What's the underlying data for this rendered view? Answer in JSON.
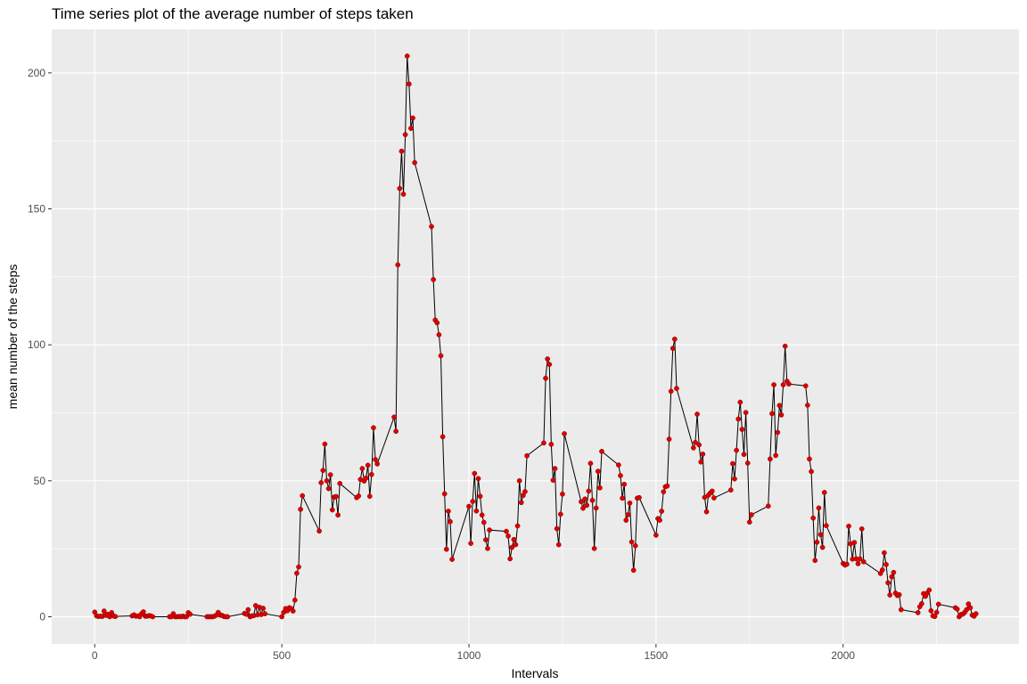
{
  "chart_data": {
    "type": "line",
    "title": "Time series plot of the average number of steps taken",
    "xlabel": "Intervals",
    "ylabel": "mean number of the steps",
    "xlim": [
      -115,
      2470
    ],
    "ylim": [
      -10,
      216
    ],
    "x_ticks": [
      0,
      500,
      1000,
      1500,
      2000
    ],
    "x_tick_labels": [
      "0",
      "500",
      "1000",
      "1500",
      "2000"
    ],
    "y_ticks": [
      0,
      50,
      100,
      150,
      200
    ],
    "y_tick_labels": [
      "0",
      "50",
      "100",
      "150",
      "200"
    ],
    "grid": true,
    "legend": "none",
    "colors": {
      "panel": "#ebebeb",
      "grid": "#ffffff",
      "line": "#000000",
      "points": "#e00000"
    },
    "series": [
      {
        "points": [
          [
            0,
            1.7
          ],
          [
            5,
            0.3
          ],
          [
            10,
            0.1
          ],
          [
            15,
            0.2
          ],
          [
            20,
            0.1
          ],
          [
            25,
            2.1
          ],
          [
            30,
            0.5
          ],
          [
            35,
            0.9
          ],
          [
            40,
            0
          ],
          [
            45,
            1.5
          ],
          [
            50,
            0.3
          ],
          [
            55,
            0.1
          ],
          [
            100,
            0.3
          ],
          [
            105,
            0.7
          ],
          [
            110,
            0.2
          ],
          [
            115,
            0.3
          ],
          [
            120,
            0
          ],
          [
            125,
            1.1
          ],
          [
            130,
            1.8
          ],
          [
            135,
            0.2
          ],
          [
            140,
            0.2
          ],
          [
            145,
            0.4
          ],
          [
            150,
            0.3
          ],
          [
            155,
            0
          ],
          [
            200,
            0
          ],
          [
            205,
            0
          ],
          [
            210,
            1.1
          ],
          [
            215,
            0
          ],
          [
            220,
            0
          ],
          [
            225,
            0.1
          ],
          [
            230,
            0
          ],
          [
            235,
            0.2
          ],
          [
            240,
            0
          ],
          [
            245,
            0
          ],
          [
            250,
            1.5
          ],
          [
            255,
            0.9
          ],
          [
            300,
            0
          ],
          [
            305,
            0
          ],
          [
            310,
            0
          ],
          [
            315,
            0
          ],
          [
            320,
            0.2
          ],
          [
            325,
            0.6
          ],
          [
            330,
            1.6
          ],
          [
            335,
            0.6
          ],
          [
            340,
            0.5
          ],
          [
            345,
            0.1
          ],
          [
            350,
            0
          ],
          [
            355,
            0
          ],
          [
            400,
            1.2
          ],
          [
            405,
            0.9
          ],
          [
            410,
            2.6
          ],
          [
            415,
            0
          ],
          [
            420,
            0.3
          ],
          [
            425,
            0.4
          ],
          [
            430,
            4.1
          ],
          [
            435,
            0.7
          ],
          [
            440,
            3.5
          ],
          [
            445,
            0.8
          ],
          [
            450,
            3.1
          ],
          [
            455,
            1.1
          ],
          [
            500,
            0
          ],
          [
            505,
            1.6
          ],
          [
            510,
            3.0
          ],
          [
            515,
            2.2
          ],
          [
            520,
            3.3
          ],
          [
            525,
            3.0
          ],
          [
            530,
            2.1
          ],
          [
            535,
            6.1
          ],
          [
            540,
            16.0
          ],
          [
            545,
            18.3
          ],
          [
            550,
            39.5
          ],
          [
            555,
            44.5
          ],
          [
            600,
            31.5
          ],
          [
            605,
            49.3
          ],
          [
            610,
            53.8
          ],
          [
            615,
            63.5
          ],
          [
            620,
            50.0
          ],
          [
            625,
            47.1
          ],
          [
            630,
            52.2
          ],
          [
            635,
            39.3
          ],
          [
            640,
            44.0
          ],
          [
            645,
            44.2
          ],
          [
            650,
            37.4
          ],
          [
            655,
            49.0
          ],
          [
            700,
            43.8
          ],
          [
            705,
            44.4
          ],
          [
            710,
            50.5
          ],
          [
            715,
            54.5
          ],
          [
            720,
            49.9
          ],
          [
            725,
            51.0
          ],
          [
            730,
            55.7
          ],
          [
            735,
            44.3
          ],
          [
            740,
            52.3
          ],
          [
            745,
            69.5
          ],
          [
            750,
            57.8
          ],
          [
            755,
            56.2
          ],
          [
            800,
            73.4
          ],
          [
            805,
            68.2
          ],
          [
            810,
            129.4
          ],
          [
            815,
            157.5
          ],
          [
            820,
            171.2
          ],
          [
            825,
            155.4
          ],
          [
            830,
            177.3
          ],
          [
            835,
            206.2
          ],
          [
            840,
            195.9
          ],
          [
            845,
            179.6
          ],
          [
            850,
            183.4
          ],
          [
            855,
            167.0
          ],
          [
            900,
            143.5
          ],
          [
            905,
            124.0
          ],
          [
            910,
            109.1
          ],
          [
            915,
            108.1
          ],
          [
            920,
            103.7
          ],
          [
            925,
            95.97
          ],
          [
            930,
            66.2
          ],
          [
            935,
            45.2
          ],
          [
            940,
            24.8
          ],
          [
            945,
            38.8
          ],
          [
            950,
            34.98
          ],
          [
            955,
            21.1
          ],
          [
            1000,
            40.6
          ],
          [
            1005,
            26.98
          ],
          [
            1010,
            42.4
          ],
          [
            1015,
            52.7
          ],
          [
            1020,
            38.9
          ],
          [
            1025,
            50.8
          ],
          [
            1030,
            44.3
          ],
          [
            1035,
            37.4
          ],
          [
            1040,
            34.7
          ],
          [
            1045,
            28.3
          ],
          [
            1050,
            25.1
          ],
          [
            1055,
            31.9
          ],
          [
            1100,
            31.4
          ],
          [
            1105,
            29.7
          ],
          [
            1110,
            21.3
          ],
          [
            1115,
            25.5
          ],
          [
            1120,
            28.4
          ],
          [
            1125,
            26.5
          ],
          [
            1130,
            33.4
          ],
          [
            1135,
            50.0
          ],
          [
            1140,
            42.0
          ],
          [
            1145,
            44.6
          ],
          [
            1150,
            46.0
          ],
          [
            1155,
            59.2
          ],
          [
            1200,
            63.9
          ],
          [
            1205,
            87.7
          ],
          [
            1210,
            94.8
          ],
          [
            1215,
            92.8
          ],
          [
            1220,
            63.4
          ],
          [
            1225,
            50.2
          ],
          [
            1230,
            54.5
          ],
          [
            1235,
            32.4
          ],
          [
            1240,
            26.5
          ],
          [
            1245,
            37.7
          ],
          [
            1250,
            45.1
          ],
          [
            1255,
            67.3
          ],
          [
            1300,
            42.3
          ],
          [
            1305,
            39.9
          ],
          [
            1310,
            43.3
          ],
          [
            1315,
            40.98
          ],
          [
            1320,
            46.2
          ],
          [
            1325,
            56.4
          ],
          [
            1330,
            42.8
          ],
          [
            1335,
            25.1
          ],
          [
            1340,
            39.97
          ],
          [
            1345,
            53.5
          ],
          [
            1350,
            47.4
          ],
          [
            1355,
            60.8
          ],
          [
            1400,
            55.8
          ],
          [
            1405,
            51.9
          ],
          [
            1410,
            43.6
          ],
          [
            1415,
            48.7
          ],
          [
            1420,
            35.5
          ],
          [
            1425,
            37.5
          ],
          [
            1430,
            41.8
          ],
          [
            1435,
            27.5
          ],
          [
            1440,
            17.1
          ],
          [
            1445,
            26.1
          ],
          [
            1450,
            43.6
          ],
          [
            1455,
            43.8
          ],
          [
            1500,
            30.0
          ],
          [
            1505,
            36.1
          ],
          [
            1510,
            35.5
          ],
          [
            1515,
            38.8
          ],
          [
            1520,
            45.96
          ],
          [
            1525,
            47.8
          ],
          [
            1530,
            48.1
          ],
          [
            1535,
            65.3
          ],
          [
            1540,
            82.9
          ],
          [
            1545,
            98.7
          ],
          [
            1550,
            102.1
          ],
          [
            1555,
            83.96
          ],
          [
            1600,
            62.1
          ],
          [
            1605,
            64.1
          ],
          [
            1610,
            74.5
          ],
          [
            1615,
            63.2
          ],
          [
            1620,
            56.9
          ],
          [
            1625,
            59.8
          ],
          [
            1630,
            43.9
          ],
          [
            1635,
            38.6
          ],
          [
            1640,
            44.7
          ],
          [
            1645,
            45.5
          ],
          [
            1650,
            46.2
          ],
          [
            1655,
            43.7
          ],
          [
            1700,
            46.6
          ],
          [
            1705,
            56.3
          ],
          [
            1710,
            50.7
          ],
          [
            1715,
            61.2
          ],
          [
            1720,
            72.7
          ],
          [
            1725,
            78.9
          ],
          [
            1730,
            68.9
          ],
          [
            1735,
            59.7
          ],
          [
            1740,
            75.1
          ],
          [
            1745,
            56.5
          ],
          [
            1750,
            34.8
          ],
          [
            1755,
            37.5
          ],
          [
            1800,
            40.7
          ],
          [
            1805,
            58.0
          ],
          [
            1810,
            74.7
          ],
          [
            1815,
            85.3
          ],
          [
            1820,
            59.3
          ],
          [
            1825,
            67.8
          ],
          [
            1830,
            77.7
          ],
          [
            1835,
            74.2
          ],
          [
            1840,
            85.3
          ],
          [
            1845,
            99.5
          ],
          [
            1850,
            86.6
          ],
          [
            1855,
            85.6
          ],
          [
            1900,
            84.9
          ],
          [
            1905,
            77.8
          ],
          [
            1910,
            58.0
          ],
          [
            1915,
            53.4
          ],
          [
            1920,
            36.3
          ],
          [
            1925,
            20.7
          ],
          [
            1930,
            27.4
          ],
          [
            1935,
            40.0
          ],
          [
            1940,
            30.2
          ],
          [
            1945,
            25.5
          ],
          [
            1950,
            45.7
          ],
          [
            1955,
            33.5
          ],
          [
            2000,
            19.6
          ],
          [
            2005,
            19.0
          ],
          [
            2010,
            19.3
          ],
          [
            2015,
            33.3
          ],
          [
            2020,
            26.8
          ],
          [
            2025,
            21.2
          ],
          [
            2030,
            27.3
          ],
          [
            2035,
            21.3
          ],
          [
            2040,
            19.5
          ],
          [
            2045,
            21.3
          ],
          [
            2050,
            32.3
          ],
          [
            2055,
            20.2
          ],
          [
            2100,
            15.9
          ],
          [
            2105,
            17.2
          ],
          [
            2110,
            23.5
          ],
          [
            2115,
            19.2
          ],
          [
            2120,
            12.5
          ],
          [
            2125,
            8.0
          ],
          [
            2130,
            14.7
          ],
          [
            2135,
            16.3
          ],
          [
            2140,
            8.7
          ],
          [
            2145,
            7.8
          ],
          [
            2150,
            8.1
          ],
          [
            2155,
            2.6
          ],
          [
            2200,
            1.5
          ],
          [
            2205,
            3.7
          ],
          [
            2210,
            4.8
          ],
          [
            2215,
            8.5
          ],
          [
            2220,
            7.5
          ],
          [
            2225,
            8.7
          ],
          [
            2230,
            9.8
          ],
          [
            2235,
            2.2
          ],
          [
            2240,
            0.3
          ],
          [
            2245,
            0.1
          ],
          [
            2250,
            1.6
          ],
          [
            2255,
            4.6
          ],
          [
            2300,
            3.3
          ],
          [
            2305,
            2.8
          ],
          [
            2310,
            0
          ],
          [
            2315,
            0.8
          ],
          [
            2320,
            0.96
          ],
          [
            2325,
            1.6
          ],
          [
            2330,
            2.6
          ],
          [
            2335,
            4.7
          ],
          [
            2340,
            3.3
          ],
          [
            2345,
            0.6
          ],
          [
            2350,
            0.2
          ],
          [
            2355,
            1.1
          ]
        ]
      }
    ]
  }
}
